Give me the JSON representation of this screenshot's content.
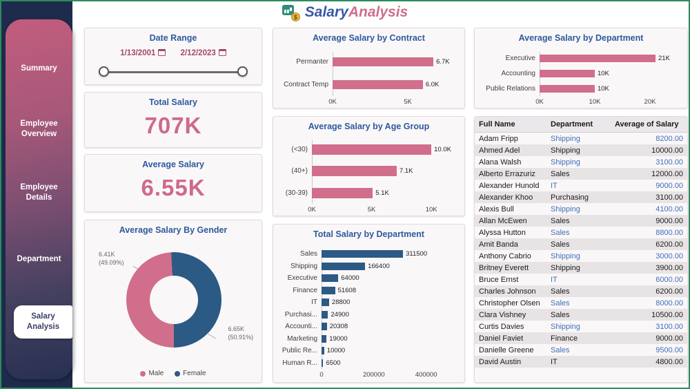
{
  "header": {
    "logo_icon": "money-chart-icon",
    "coin_text": "$",
    "title_part1": "Salary",
    "title_part2": "Analysis"
  },
  "sidebar": {
    "items": [
      {
        "label": "Summary",
        "active": false
      },
      {
        "label": "Employee Overview",
        "active": false
      },
      {
        "label": "Employee Details",
        "active": false
      },
      {
        "label": "Department",
        "active": false
      },
      {
        "label": "Salary Analysis",
        "active": true
      }
    ]
  },
  "cards": {
    "date_range": {
      "title": "Date Range",
      "start_date": "1/13/2001",
      "end_date": "2/12/2023"
    },
    "total_salary": {
      "title": "Total Salary",
      "value": "707K"
    },
    "average_salary": {
      "title": "Average Salary",
      "value": "6.55K"
    }
  },
  "chart_data": [
    {
      "id": "avg-salary-by-contract",
      "type": "bar",
      "orientation": "horizontal",
      "title": "Average Salary by Contract",
      "categories": [
        "Permanter",
        "Contract Temp"
      ],
      "values": [
        6700,
        6000
      ],
      "value_labels": [
        "6.7K",
        "6.0K"
      ],
      "xlim": [
        0,
        7200
      ],
      "ticks": [
        {
          "value": 0,
          "label": "0K"
        },
        {
          "value": 5000,
          "label": "5K"
        }
      ],
      "bar_color": "#d06e8c"
    },
    {
      "id": "avg-salary-by-age-group",
      "type": "bar",
      "orientation": "horizontal",
      "title": "Average Salary by Age Group",
      "categories": [
        "(<30)",
        "(40+)",
        "(30-39)"
      ],
      "values": [
        10000,
        7100,
        5100
      ],
      "value_labels": [
        "10.0K",
        "7.1K",
        "5.1K"
      ],
      "xlim": [
        0,
        10800
      ],
      "ticks": [
        {
          "value": 0,
          "label": "0K"
        },
        {
          "value": 5000,
          "label": "5K"
        },
        {
          "value": 10000,
          "label": "10K"
        }
      ],
      "bar_color": "#d06e8c"
    },
    {
      "id": "avg-salary-by-department",
      "type": "bar",
      "orientation": "horizontal",
      "title": "Average Salary by Department",
      "categories": [
        "Executive",
        "Accounting",
        "Public Relations"
      ],
      "values": [
        21000,
        10000,
        10000
      ],
      "value_labels": [
        "21K",
        "10K",
        "10K"
      ],
      "xlim": [
        0,
        22500
      ],
      "ticks": [
        {
          "value": 0,
          "label": "0K"
        },
        {
          "value": 10000,
          "label": "10K"
        },
        {
          "value": 20000,
          "label": "20K"
        }
      ],
      "bar_color": "#d06e8c"
    },
    {
      "id": "total-salary-by-department",
      "type": "bar",
      "orientation": "horizontal",
      "title": "Total Salary by Department",
      "categories": [
        "Sales",
        "Shipping",
        "Executive",
        "Finance",
        "IT",
        "Purchasi...",
        "Accounti...",
        "Marketing",
        "Public Re...",
        "Human R..."
      ],
      "values": [
        311500,
        166400,
        64000,
        51608,
        28800,
        24900,
        20308,
        19000,
        10000,
        6500
      ],
      "value_labels": [
        "311500",
        "166400",
        "64000",
        "51608",
        "28800",
        "24900",
        "20308",
        "19000",
        "10000",
        "6500"
      ],
      "xlim": [
        0,
        430000
      ],
      "ticks": [
        {
          "value": 0,
          "label": "0"
        },
        {
          "value": 200000,
          "label": "200000"
        },
        {
          "value": 400000,
          "label": "400000"
        }
      ],
      "bar_color": "#2b5a84"
    },
    {
      "id": "avg-salary-by-gender",
      "type": "pie",
      "title": "Average Salary By Gender",
      "legend_position": "bottom",
      "series": [
        {
          "name": "Male",
          "value": 6410,
          "percent": 49.09,
          "callout": "6.41K\n(49.09%)",
          "color": "#d06e8c"
        },
        {
          "name": "Female",
          "value": 6650,
          "percent": 50.91,
          "callout": "6.65K\n(50.91%)",
          "color": "#2b5a84"
        }
      ]
    }
  ],
  "table": {
    "columns": [
      "Full Name",
      "Department",
      "Average of Salary"
    ],
    "rows": [
      [
        "Adam Fripp",
        "Shipping",
        "8200.00"
      ],
      [
        "Ahmed Adel",
        "Shipping",
        "10000.00"
      ],
      [
        "Alana Walsh",
        "Shipping",
        "3100.00"
      ],
      [
        "Alberto Errazuriz",
        "Sales",
        "12000.00"
      ],
      [
        "Alexander Hunold",
        "IT",
        "9000.00"
      ],
      [
        "Alexander Khoo",
        "Purchasing",
        "3100.00"
      ],
      [
        "Alexis Bull",
        "Shipping",
        "4100.00"
      ],
      [
        "Allan McEwen",
        "Sales",
        "9000.00"
      ],
      [
        "Alyssa Hutton",
        "Sales",
        "8800.00"
      ],
      [
        "Amit Banda",
        "Sales",
        "6200.00"
      ],
      [
        "Anthony Cabrio",
        "Shipping",
        "3000.00"
      ],
      [
        "Britney Everett",
        "Shipping",
        "3900.00"
      ],
      [
        "Bruce Ernst",
        "IT",
        "6000.00"
      ],
      [
        "Charles Johnson",
        "Sales",
        "6200.00"
      ],
      [
        "Christopher Olsen",
        "Sales",
        "8000.00"
      ],
      [
        "Clara Vishney",
        "Sales",
        "10500.00"
      ],
      [
        "Curtis Davies",
        "Shipping",
        "3100.00"
      ],
      [
        "Daniel Faviet",
        "Finance",
        "9000.00"
      ],
      [
        "Danielle Greene",
        "Sales",
        "9500.00"
      ],
      [
        "David Austin",
        "IT",
        "4800.00"
      ]
    ]
  }
}
